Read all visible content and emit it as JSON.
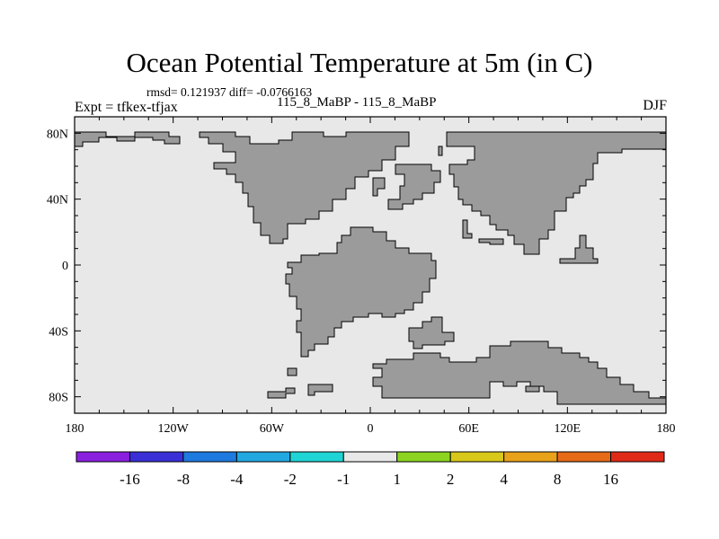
{
  "title": "Ocean Potential Temperature at 5m (in C)",
  "stats": "rmsd= 0.121937 diff= -0.0766163",
  "expt": "Expt = tfkex-tfjax",
  "case": "115_8_MaBP - 115_8_MaBP",
  "season": "DJF",
  "colors": {
    "ocean": "#e8e8e8",
    "land": "#9b9b9b",
    "outline": "#000000"
  },
  "lon_ticks": [
    "180",
    "120W",
    "60W",
    "0",
    "60E",
    "120E",
    "180"
  ],
  "lat_ticks": [
    "80N",
    "40N",
    "0",
    "40S",
    "80S"
  ],
  "colorbar": {
    "colors": [
      "#8a1fe0",
      "#3a2fd6",
      "#1f7ae0",
      "#22a8e0",
      "#1fd4d4",
      "#e8e8e8",
      "#8cd41f",
      "#d8c81a",
      "#e8a21a",
      "#e66a18",
      "#e02a18"
    ],
    "labels": [
      "-16",
      "-8",
      "-4",
      "-2",
      "-1",
      "1",
      "2",
      "4",
      "8",
      "16"
    ]
  }
}
